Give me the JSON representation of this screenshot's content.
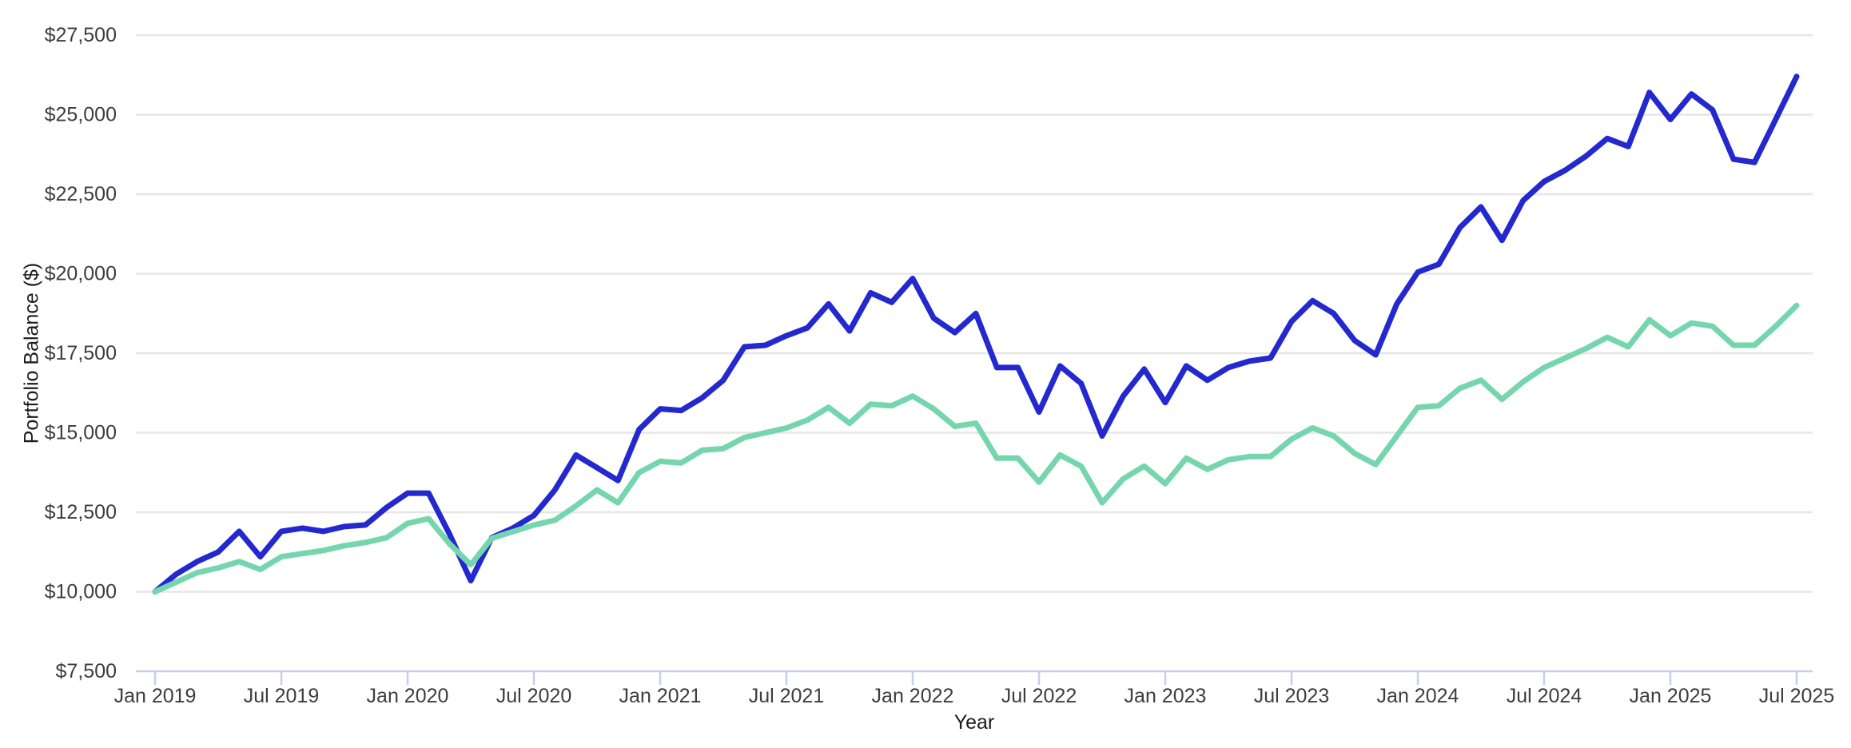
{
  "chart_data": {
    "type": "line",
    "title": "",
    "xlabel": "Year",
    "ylabel": "Portfolio Balance ($)",
    "x_interval": "monthly",
    "x_range": [
      "Jan 2019",
      "Jul 2025"
    ],
    "x_tick_labels": [
      "Jan 2019",
      "Jul 2019",
      "Jan 2020",
      "Jul 2020",
      "Jan 2021",
      "Jul 2021",
      "Jan 2022",
      "Jul 2022",
      "Jan 2023",
      "Jul 2023",
      "Jan 2024",
      "Jul 2024",
      "Jan 2025",
      "Jul 2025"
    ],
    "y_tick_labels": [
      "$7,500",
      "$10,000",
      "$12,500",
      "$15,000",
      "$17,500",
      "$20,000",
      "$22,500",
      "$25,000",
      "$27,500"
    ],
    "ylim": [
      7500,
      27500
    ],
    "y_tick_interval": 2500,
    "grid": "horizontal-only",
    "legend": "none",
    "colors": {
      "background": "#ffffff",
      "gridline": "#e6e6e6",
      "baseline": "#c6cfe9",
      "tick_mark": "#c6cfe9",
      "tick_label": "#3d3d3d",
      "axis_title": "#1c1c1c",
      "series_blue": "#2328cf",
      "series_green": "#75d6ae"
    },
    "series": [
      {
        "name": "blue-portfolio",
        "color": "#2328cf",
        "values": [
          10000,
          10550,
          10950,
          11250,
          11900,
          11100,
          11900,
          12000,
          11900,
          12050,
          12100,
          12650,
          13100,
          13100,
          11800,
          10350,
          11700,
          12000,
          12400,
          13200,
          14300,
          13900,
          13500,
          15100,
          15750,
          15700,
          16100,
          16650,
          17700,
          17750,
          18050,
          18300,
          19050,
          18200,
          19400,
          19100,
          19850,
          18600,
          18150,
          18750,
          17050,
          17050,
          15650,
          17100,
          16550,
          14900,
          16150,
          17000,
          15950,
          17100,
          16650,
          17050,
          17250,
          17350,
          18500,
          19150,
          18750,
          17900,
          17450,
          19050,
          20050,
          20300,
          21450,
          22100,
          21050,
          22300,
          22900,
          23250,
          23700,
          24250,
          24000,
          25700,
          24850,
          25650,
          25150,
          23600,
          23500,
          24850,
          26200
        ]
      },
      {
        "name": "green-portfolio",
        "color": "#75d6ae",
        "values": [
          10000,
          10300,
          10600,
          10750,
          10950,
          10700,
          11100,
          11200,
          11300,
          11450,
          11550,
          11700,
          12150,
          12300,
          11500,
          10850,
          11680,
          11890,
          12100,
          12250,
          12700,
          13200,
          12800,
          13750,
          14100,
          14050,
          14450,
          14500,
          14850,
          15000,
          15150,
          15400,
          15800,
          15300,
          15900,
          15850,
          16150,
          15750,
          15200,
          15300,
          14200,
          14200,
          13450,
          14300,
          13950,
          12800,
          13550,
          13950,
          13400,
          14200,
          13850,
          14150,
          14250,
          14250,
          14800,
          15150,
          14900,
          14350,
          14000,
          14900,
          15800,
          15850,
          16400,
          16650,
          16050,
          16600,
          17050,
          17350,
          17650,
          18000,
          17700,
          18550,
          18050,
          18450,
          18350,
          17750,
          17750,
          18350,
          19000
        ]
      }
    ]
  }
}
